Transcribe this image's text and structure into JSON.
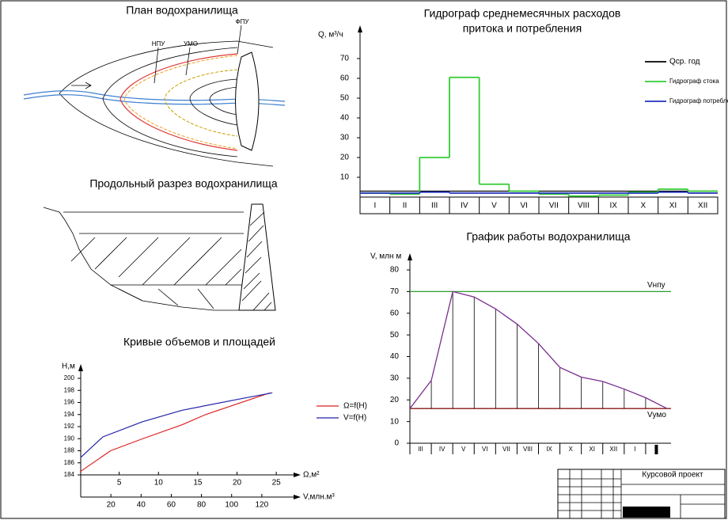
{
  "chart_data": [
    {
      "type": "step",
      "title": [
        "Гидрограф среднемесячных расходов",
        "притока и потребления"
      ],
      "y_label": "Q, м³/ч",
      "categories": [
        "I",
        "II",
        "III",
        "IV",
        "V",
        "VI",
        "VII",
        "VIII",
        "IX",
        "X",
        "XI",
        "XII"
      ],
      "series": [
        {
          "name": "Гидрограф стока",
          "color": "#33cc33",
          "values": [
            2,
            1.5,
            20,
            60.5,
            6.5,
            3,
            1.5,
            0.5,
            1,
            2.5,
            4,
            3
          ]
        },
        {
          "name": "Гидрограф потребления",
          "color": "#2233bb",
          "values": [
            2,
            2,
            2.5,
            2,
            2,
            2,
            2,
            2,
            2,
            2,
            2.5,
            2
          ]
        }
      ],
      "mean": {
        "name": "Qср. год",
        "color": "#000000",
        "value": 3
      },
      "ylim": [
        0,
        80
      ],
      "yticks": [
        10,
        20,
        30,
        40,
        50,
        60,
        70
      ]
    },
    {
      "type": "line",
      "title": "График работы водохранилища",
      "y_label": "V, млн м",
      "months": [
        "III",
        "IV",
        "V",
        "VI",
        "VII",
        "VIII",
        "IX",
        "X",
        "XI",
        "XII",
        "I",
        null
      ],
      "x": [
        0,
        1,
        2,
        3,
        4,
        5,
        6,
        7,
        8,
        9,
        10,
        11,
        12
      ],
      "values": [
        16,
        29,
        70,
        67.5,
        62,
        55,
        46,
        35,
        30.5,
        28.5,
        25,
        21,
        16
      ],
      "color": "#7b2d8e",
      "levels": [
        {
          "label": "Vнпу",
          "value": 70,
          "color": "#2a9d2a"
        },
        {
          "label": "Vумо",
          "value": 16,
          "color": "#8b1a1a"
        }
      ],
      "xlim": [
        0,
        12
      ],
      "ylim": [
        0,
        80
      ],
      "yticks": [
        0,
        10,
        20,
        30,
        40,
        50,
        60,
        70,
        80
      ]
    },
    {
      "type": "curves",
      "title": "Кривые объемов и площадей",
      "y_label": "H,м",
      "x_label": "V,млн.м³",
      "x2_label": "Ω,м²",
      "series": [
        {
          "name": "Ω=f(H)",
          "color": "#dd2222",
          "axis": "x2",
          "x": [
            0,
            3.9,
            8,
            13,
            16,
            24.2
          ],
          "values": [
            184.5,
            188,
            190,
            192.3,
            194,
            197.6
          ]
        },
        {
          "name": "V=f(H)",
          "color": "#2222aa",
          "axis": "x",
          "x": [
            0,
            14.7,
            40.8,
            67,
            103.7,
            127
          ],
          "values": [
            186.9,
            190.3,
            192.8,
            194.7,
            196.5,
            197.6
          ]
        }
      ],
      "xlim": [
        0,
        140
      ],
      "xticks": [
        20,
        40,
        60,
        80,
        100,
        120
      ],
      "x2lim": [
        0,
        27
      ],
      "x2ticks": [
        5,
        10,
        15,
        20,
        25
      ],
      "ylim": [
        184,
        200
      ],
      "yticks": [
        184,
        186,
        188,
        190,
        192,
        194,
        196,
        198,
        200
      ]
    }
  ],
  "plan": {
    "title": "План водохранилища",
    "labels": [
      "НПУ",
      "УМО",
      "ФПУ"
    ]
  },
  "section": {
    "title": "Продольный разрез водохранилища"
  },
  "stamp": {
    "title": "Курсовой проект"
  }
}
